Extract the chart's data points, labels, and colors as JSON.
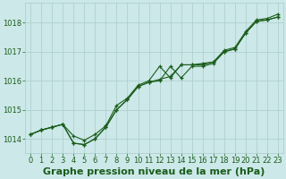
{
  "title": "Graphe pression niveau de la mer (hPa)",
  "bg_color": "#cce8e8",
  "grid_color": "#aacccc",
  "line_color": "#1a5c1a",
  "marker_color": "#1a5c1a",
  "text_color": "#1a5c1a",
  "ylim": [
    1013.5,
    1018.7
  ],
  "xlim": [
    -0.5,
    23.5
  ],
  "yticks": [
    1014,
    1015,
    1016,
    1017,
    1018
  ],
  "xticks": [
    0,
    1,
    2,
    3,
    4,
    5,
    6,
    7,
    8,
    9,
    10,
    11,
    12,
    13,
    14,
    15,
    16,
    17,
    18,
    19,
    20,
    21,
    22,
    23
  ],
  "series1": [
    1014.15,
    1014.3,
    1014.4,
    1014.5,
    1013.85,
    1013.8,
    1014.0,
    1014.4,
    1015.0,
    1015.35,
    1015.8,
    1015.95,
    1016.0,
    1016.5,
    1016.1,
    1016.5,
    1016.5,
    1016.6,
    1017.0,
    1017.1,
    1017.65,
    1018.05,
    1018.1,
    1018.2
  ],
  "series2": [
    1014.15,
    1014.3,
    1014.4,
    1014.5,
    1013.85,
    1013.8,
    1014.0,
    1014.4,
    1015.0,
    1015.35,
    1015.8,
    1015.95,
    1016.05,
    1016.15,
    1016.55,
    1016.55,
    1016.55,
    1016.65,
    1017.0,
    1017.1,
    1017.65,
    1018.05,
    1018.1,
    1018.2
  ],
  "series3": [
    1014.15,
    1014.3,
    1014.4,
    1014.5,
    1014.1,
    1013.95,
    1014.15,
    1014.45,
    1015.15,
    1015.4,
    1015.85,
    1016.0,
    1016.5,
    1016.1,
    1016.55,
    1016.55,
    1016.6,
    1016.65,
    1017.05,
    1017.15,
    1017.7,
    1018.1,
    1018.15,
    1018.3
  ],
  "title_fontsize": 8,
  "tick_fontsize": 6
}
